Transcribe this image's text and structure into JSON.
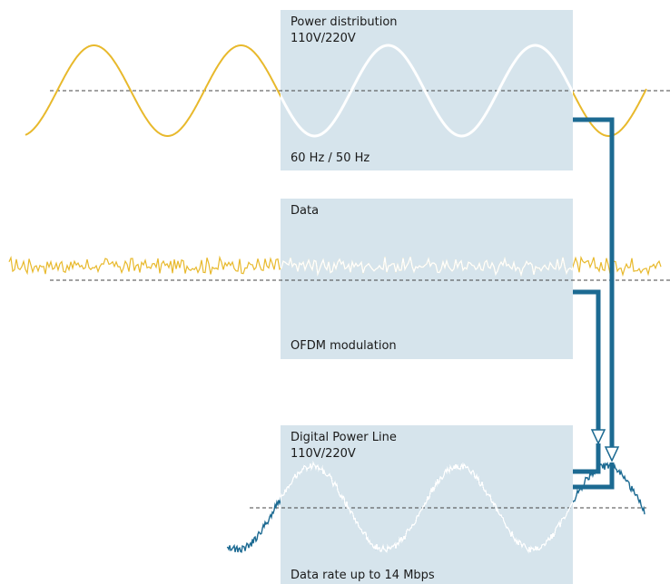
{
  "panels": {
    "power": {
      "title_line1": "Power distribution",
      "title_line2": "110V/220V",
      "caption": "60 Hz / 50 Hz"
    },
    "data": {
      "title": "Data",
      "caption": "OFDM modulation"
    },
    "digital": {
      "title_line1": "Digital Power Line",
      "title_line2": "110V/220V",
      "caption": "Data rate up to 14 Mbps"
    }
  },
  "colors": {
    "panel": "#d6e4ec",
    "power_wave": "#e8b92c",
    "data_wave": "#e8b92c",
    "combined_wave": "#1c6a92",
    "in_panel_wave": "#ffffff",
    "connector": "#1c6a92",
    "baseline": "#444444"
  },
  "icons": {
    "arrowheads": "triangle-down-outline-icon"
  }
}
